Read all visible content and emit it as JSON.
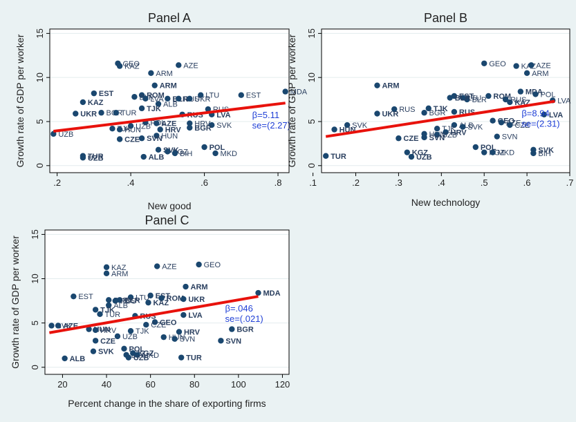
{
  "chart_data": [
    {
      "type": "scatter",
      "title": "Panel A",
      "xlabel": "New good",
      "ylabel": "Growth rate of GDP per worker",
      "xlim": [
        0.18,
        0.83
      ],
      "ylim": [
        -0.8,
        15.5
      ],
      "xticks": [
        ".2",
        ".4",
        ".6",
        ".8"
      ],
      "xtick_values": [
        0.2,
        0.4,
        0.6,
        0.8
      ],
      "yticks": [
        "0",
        "5",
        "10",
        "15"
      ],
      "ytick_values": [
        0,
        5,
        10,
        15
      ],
      "grid": true,
      "fit_line": {
        "x": [
          0.19,
          0.82
        ],
        "y": [
          3.9,
          7.1
        ],
        "color": "#e8120c"
      },
      "annotations": {
        "beta": "β=5.11",
        "se": "se=(2.27)"
      },
      "points": [
        {
          "x": 0.365,
          "y": 11.6,
          "label": "GEO",
          "bold": false
        },
        {
          "x": 0.37,
          "y": 11.3,
          "label": "KAZ",
          "bold": false
        },
        {
          "x": 0.53,
          "y": 11.4,
          "label": "AZE",
          "bold": false
        },
        {
          "x": 0.455,
          "y": 10.5,
          "label": "ARM",
          "bold": false
        },
        {
          "x": 0.465,
          "y": 9.1,
          "label": "ARM",
          "bold": true
        },
        {
          "x": 0.3,
          "y": 8.2,
          "label": "EST",
          "bold": true
        },
        {
          "x": 0.59,
          "y": 8.0,
          "label": "LTU",
          "bold": false
        },
        {
          "x": 0.7,
          "y": 8.0,
          "label": "EST",
          "bold": false
        },
        {
          "x": 0.82,
          "y": 8.4,
          "label": "MDA",
          "bold": false
        },
        {
          "x": 0.43,
          "y": 8.0,
          "label": "ROM",
          "bold": true
        },
        {
          "x": 0.41,
          "y": 7.8,
          "label": "BLR",
          "bold": false
        },
        {
          "x": 0.44,
          "y": 7.6,
          "label": "LVA",
          "bold": false
        },
        {
          "x": 0.5,
          "y": 7.6,
          "label": "BLR",
          "bold": true
        },
        {
          "x": 0.53,
          "y": 7.6,
          "label": "RUS",
          "bold": false
        },
        {
          "x": 0.56,
          "y": 7.6,
          "label": "UKR",
          "bold": false
        },
        {
          "x": 0.475,
          "y": 7.0,
          "label": "ALB",
          "bold": false
        },
        {
          "x": 0.27,
          "y": 7.2,
          "label": "KAZ",
          "bold": true
        },
        {
          "x": 0.43,
          "y": 6.5,
          "label": "TJK",
          "bold": true
        },
        {
          "x": 0.61,
          "y": 6.4,
          "label": "RUS",
          "bold": false
        },
        {
          "x": 0.25,
          "y": 5.9,
          "label": "UKR",
          "bold": true
        },
        {
          "x": 0.32,
          "y": 6.0,
          "label": "BGR",
          "bold": false
        },
        {
          "x": 0.36,
          "y": 6.0,
          "label": "TUR",
          "bold": false
        },
        {
          "x": 0.54,
          "y": 5.8,
          "label": "RUS",
          "bold": true
        },
        {
          "x": 0.62,
          "y": 5.8,
          "label": "LVA",
          "bold": true
        },
        {
          "x": 0.44,
          "y": 4.9,
          "label": "POL",
          "bold": false
        },
        {
          "x": 0.47,
          "y": 4.8,
          "label": "AZE",
          "bold": true
        },
        {
          "x": 0.56,
          "y": 4.8,
          "label": "HRV",
          "bold": false
        },
        {
          "x": 0.62,
          "y": 4.6,
          "label": "SVK",
          "bold": false
        },
        {
          "x": 0.56,
          "y": 4.3,
          "label": "BGR",
          "bold": true
        },
        {
          "x": 0.4,
          "y": 4.5,
          "label": "UZB",
          "bold": false
        },
        {
          "x": 0.35,
          "y": 4.2,
          "label": "TJK",
          "bold": false
        },
        {
          "x": 0.37,
          "y": 4.1,
          "label": "HUN",
          "bold": false
        },
        {
          "x": 0.48,
          "y": 4.1,
          "label": "HRV",
          "bold": true
        },
        {
          "x": 0.47,
          "y": 3.4,
          "label": "HUN",
          "bold": false
        },
        {
          "x": 0.43,
          "y": 3.1,
          "label": "SVN",
          "bold": true
        },
        {
          "x": 0.19,
          "y": 3.6,
          "label": "UZB",
          "bold": false
        },
        {
          "x": 0.37,
          "y": 3.0,
          "label": "CZE",
          "bold": true
        },
        {
          "x": 0.6,
          "y": 2.1,
          "label": "POL",
          "bold": true
        },
        {
          "x": 0.475,
          "y": 1.8,
          "label": "SVK",
          "bold": true
        },
        {
          "x": 0.5,
          "y": 1.6,
          "label": "KGZ",
          "bold": false
        },
        {
          "x": 0.63,
          "y": 1.4,
          "label": "MKD",
          "bold": false
        },
        {
          "x": 0.52,
          "y": 1.4,
          "label": "BIH",
          "bold": false
        },
        {
          "x": 0.435,
          "y": 1.0,
          "label": "ALB",
          "bold": true
        },
        {
          "x": 0.27,
          "y": 1.1,
          "label": "TUR",
          "bold": true
        },
        {
          "x": 0.27,
          "y": 0.9,
          "label": "UZB",
          "bold": true
        }
      ]
    },
    {
      "type": "scatter",
      "title": "Panel B",
      "xlabel": "New technology",
      "ylabel": "Growth rate of GDP per worker",
      "xlim": [
        0.12,
        0.7
      ],
      "ylim": [
        -0.8,
        15.5
      ],
      "xticks": [
        ".1",
        ".2",
        ".3",
        ".4",
        ".5",
        ".6",
        ".7"
      ],
      "xtick_values": [
        0.1,
        0.2,
        0.3,
        0.4,
        0.5,
        0.6,
        0.7
      ],
      "yticks": [
        "0",
        "5",
        "10",
        "15"
      ],
      "ytick_values": [
        0,
        5,
        10,
        15
      ],
      "grid": true,
      "fit_line": {
        "x": [
          0.13,
          0.665
        ],
        "y": [
          3.3,
          7.3
        ],
        "color": "#e8120c"
      },
      "annotations": {
        "beta": "β=8.94",
        "se": "se=(2.31)"
      },
      "points": [
        {
          "x": 0.5,
          "y": 11.6,
          "label": "GEO",
          "bold": false
        },
        {
          "x": 0.575,
          "y": 11.3,
          "label": "KAZ",
          "bold": false
        },
        {
          "x": 0.61,
          "y": 11.4,
          "label": "AZE",
          "bold": false
        },
        {
          "x": 0.6,
          "y": 10.5,
          "label": "ARM",
          "bold": false
        },
        {
          "x": 0.25,
          "y": 9.1,
          "label": "ARM",
          "bold": true
        },
        {
          "x": 0.585,
          "y": 8.4,
          "label": "MDA",
          "bold": true
        },
        {
          "x": 0.62,
          "y": 8.1,
          "label": "POL",
          "bold": false
        },
        {
          "x": 0.51,
          "y": 7.9,
          "label": "ROM",
          "bold": true
        },
        {
          "x": 0.43,
          "y": 7.9,
          "label": "EST",
          "bold": true
        },
        {
          "x": 0.45,
          "y": 7.7,
          "label": "LTU",
          "bold": false
        },
        {
          "x": 0.46,
          "y": 7.5,
          "label": "BLR",
          "bold": false
        },
        {
          "x": 0.42,
          "y": 7.7,
          "label": "BLR",
          "bold": true
        },
        {
          "x": 0.55,
          "y": 7.5,
          "label": "RUS",
          "bold": false
        },
        {
          "x": 0.56,
          "y": 7.2,
          "label": "KAZ",
          "bold": true
        },
        {
          "x": 0.66,
          "y": 7.4,
          "label": "LVA",
          "bold": false
        },
        {
          "x": 0.37,
          "y": 6.5,
          "label": "TJK",
          "bold": true
        },
        {
          "x": 0.29,
          "y": 6.4,
          "label": "RUS",
          "bold": false
        },
        {
          "x": 0.43,
          "y": 6.1,
          "label": "RUS",
          "bold": true
        },
        {
          "x": 0.36,
          "y": 6.0,
          "label": "BGR",
          "bold": false
        },
        {
          "x": 0.25,
          "y": 5.9,
          "label": "UKR",
          "bold": true
        },
        {
          "x": 0.64,
          "y": 5.8,
          "label": "LVA",
          "bold": true
        },
        {
          "x": 0.52,
          "y": 5.1,
          "label": "GEO",
          "bold": true
        },
        {
          "x": 0.54,
          "y": 4.9,
          "label": "AZE",
          "bold": false
        },
        {
          "x": 0.56,
          "y": 4.6,
          "label": "CZE",
          "bold": false
        },
        {
          "x": 0.18,
          "y": 4.6,
          "label": "SVK",
          "bold": false
        },
        {
          "x": 0.43,
          "y": 4.6,
          "label": "ALB",
          "bold": false
        },
        {
          "x": 0.45,
          "y": 4.4,
          "label": "SVK",
          "bold": false
        },
        {
          "x": 0.39,
          "y": 4.2,
          "label": "TJK",
          "bold": false
        },
        {
          "x": 0.41,
          "y": 3.8,
          "label": "HRV",
          "bold": true
        },
        {
          "x": 0.15,
          "y": 4.1,
          "label": "HUN",
          "bold": true
        },
        {
          "x": 0.36,
          "y": 3.6,
          "label": "HUN",
          "bold": false
        },
        {
          "x": 0.39,
          "y": 3.5,
          "label": "UZB",
          "bold": false
        },
        {
          "x": 0.53,
          "y": 3.3,
          "label": "SVN",
          "bold": false
        },
        {
          "x": 0.36,
          "y": 3.2,
          "label": "SVN",
          "bold": true
        },
        {
          "x": 0.3,
          "y": 3.1,
          "label": "CZE",
          "bold": true
        },
        {
          "x": 0.48,
          "y": 2.1,
          "label": "POL",
          "bold": true
        },
        {
          "x": 0.615,
          "y": 1.8,
          "label": "SVK",
          "bold": true
        },
        {
          "x": 0.32,
          "y": 1.5,
          "label": "KGZ",
          "bold": true
        },
        {
          "x": 0.5,
          "y": 1.5,
          "label": "KGZ",
          "bold": false
        },
        {
          "x": 0.52,
          "y": 1.5,
          "label": "MKD",
          "bold": false
        },
        {
          "x": 0.615,
          "y": 1.4,
          "label": "BIH",
          "bold": false
        },
        {
          "x": 0.33,
          "y": 1.0,
          "label": "UZB",
          "bold": true
        },
        {
          "x": 0.13,
          "y": 1.1,
          "label": "TUR",
          "bold": true
        }
      ]
    },
    {
      "type": "scatter",
      "title": "Panel C",
      "xlabel": "Percent change in the share of exporting firms",
      "ylabel": "Growth rate of GDP per worker",
      "xlim": [
        12,
        123
      ],
      "ylim": [
        -0.8,
        15.5
      ],
      "xticks": [
        "20",
        "40",
        "60",
        "80",
        "100",
        "120"
      ],
      "xtick_values": [
        20,
        40,
        60,
        80,
        100,
        120
      ],
      "yticks": [
        "0",
        "5",
        "10",
        "15"
      ],
      "ytick_values": [
        0,
        5,
        10,
        15
      ],
      "grid": true,
      "fit_line": {
        "x": [
          14,
          109
        ],
        "y": [
          3.9,
          8.0
        ],
        "color": "#e8120c"
      },
      "annotations": {
        "beta": "β=.046",
        "se": "se=(.021)"
      },
      "points": [
        {
          "x": 82,
          "y": 11.6,
          "label": "GEO",
          "bold": false
        },
        {
          "x": 40,
          "y": 11.3,
          "label": "KAZ",
          "bold": false
        },
        {
          "x": 63,
          "y": 11.4,
          "label": "AZE",
          "bold": false
        },
        {
          "x": 40,
          "y": 10.6,
          "label": "ARM",
          "bold": false
        },
        {
          "x": 76,
          "y": 9.1,
          "label": "ARM",
          "bold": true
        },
        {
          "x": 109,
          "y": 8.4,
          "label": "MDA",
          "bold": true
        },
        {
          "x": 25,
          "y": 8.0,
          "label": "EST",
          "bold": false
        },
        {
          "x": 60,
          "y": 8.1,
          "label": "EST",
          "bold": true
        },
        {
          "x": 51,
          "y": 7.9,
          "label": "LTU",
          "bold": false
        },
        {
          "x": 65,
          "y": 7.8,
          "label": "ROM",
          "bold": true
        },
        {
          "x": 75,
          "y": 7.7,
          "label": "UKR",
          "bold": true
        },
        {
          "x": 41,
          "y": 7.6,
          "label": "BLR",
          "bold": false
        },
        {
          "x": 46,
          "y": 7.6,
          "label": "BLR",
          "bold": true
        },
        {
          "x": 59,
          "y": 7.3,
          "label": "KAZ",
          "bold": true
        },
        {
          "x": 44,
          "y": 7.5,
          "label": "RUS",
          "bold": false
        },
        {
          "x": 41,
          "y": 7.0,
          "label": "ALB",
          "bold": false
        },
        {
          "x": 35,
          "y": 6.5,
          "label": "TJK",
          "bold": true
        },
        {
          "x": 37,
          "y": 6.0,
          "label": "TUR",
          "bold": false
        },
        {
          "x": 53,
          "y": 5.8,
          "label": "RUS",
          "bold": true
        },
        {
          "x": 75,
          "y": 5.9,
          "label": "LVA",
          "bold": true
        },
        {
          "x": 62,
          "y": 5.1,
          "label": "GEO",
          "bold": true
        },
        {
          "x": 58,
          "y": 4.8,
          "label": "CZE",
          "bold": false
        },
        {
          "x": 15,
          "y": 4.7,
          "label": "SVK",
          "bold": false
        },
        {
          "x": 18,
          "y": 4.7,
          "label": "AZE",
          "bold": true
        },
        {
          "x": 32,
          "y": 4.3,
          "label": "HUN",
          "bold": true
        },
        {
          "x": 35,
          "y": 4.2,
          "label": "HRV",
          "bold": false
        },
        {
          "x": 51,
          "y": 4.1,
          "label": "TJK",
          "bold": false
        },
        {
          "x": 73,
          "y": 4.0,
          "label": "HRV",
          "bold": true
        },
        {
          "x": 97,
          "y": 4.3,
          "label": "BGR",
          "bold": true
        },
        {
          "x": 45,
          "y": 3.5,
          "label": "UZB",
          "bold": false
        },
        {
          "x": 66,
          "y": 3.4,
          "label": "HUN",
          "bold": false
        },
        {
          "x": 71,
          "y": 3.2,
          "label": "SVN",
          "bold": false
        },
        {
          "x": 92,
          "y": 3.0,
          "label": "SVN",
          "bold": true
        },
        {
          "x": 35,
          "y": 3.0,
          "label": "CZE",
          "bold": true
        },
        {
          "x": 48,
          "y": 2.1,
          "label": "POL",
          "bold": true
        },
        {
          "x": 34,
          "y": 1.8,
          "label": "SVK",
          "bold": true
        },
        {
          "x": 49,
          "y": 1.4,
          "label": "BIH",
          "bold": false
        },
        {
          "x": 52,
          "y": 1.6,
          "label": "KGZ",
          "bold": true
        },
        {
          "x": 54,
          "y": 1.4,
          "label": "MKD",
          "bold": false
        },
        {
          "x": 50,
          "y": 1.1,
          "label": "UZB",
          "bold": true
        },
        {
          "x": 21,
          "y": 1.0,
          "label": "ALB",
          "bold": true
        },
        {
          "x": 74,
          "y": 1.1,
          "label": "TUR",
          "bold": true
        }
      ]
    }
  ]
}
